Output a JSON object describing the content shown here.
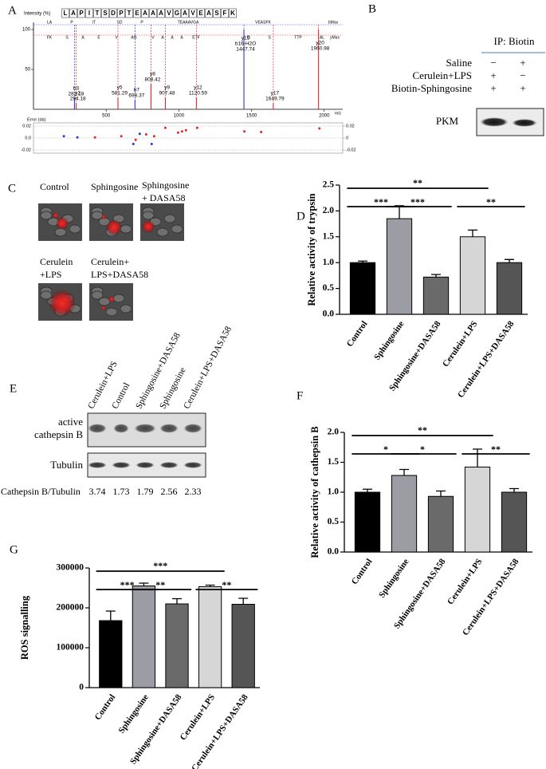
{
  "panel_labels": [
    "A",
    "B",
    "C",
    "D",
    "E",
    "F",
    "G"
  ],
  "chart_data": [
    {
      "type": "spectrum",
      "y_label": "Intensity (%)",
      "x_label": "m/z",
      "sequence": [
        "L",
        "A",
        "P",
        "I",
        "T",
        "S",
        "D",
        "P",
        "T",
        "E",
        "A",
        "A",
        "A",
        "V",
        "G",
        "A",
        "V",
        "E",
        "A",
        "S",
        "F",
        "K"
      ],
      "b_ions": [
        "LA",
        "P",
        "IT",
        "SD",
        "P",
        "TEAAAVGA",
        "VEASFK",
        "bMax"
      ],
      "y_ions": [
        "FK",
        "S",
        "A",
        "E",
        "V",
        "AG",
        "V",
        "A",
        "A",
        "A",
        "ETF",
        "D",
        "S",
        "TTP",
        "AL",
        "yMax"
      ],
      "xlim": [
        0,
        2100
      ],
      "xticks": [
        500,
        1000,
        1500,
        2000
      ],
      "ylim": [
        0,
        100
      ],
      "yticks": [
        50,
        100
      ],
      "peaks": {
        "names": [
          [
            "b3"
          ],
          [
            "y2"
          ],
          [
            "y5"
          ],
          [
            "b7"
          ],
          [
            "y8"
          ],
          [
            "y9"
          ],
          [
            "y12"
          ],
          [
            "y15",
            "b16-H2O"
          ],
          [
            "y17"
          ],
          [
            "y20"
          ]
        ],
        "x": [
          282.18,
          294.18,
          581.29,
          698.37,
          808.42,
          907.48,
          1120.59,
          1447.74,
          1649.79,
          1960.98
        ],
        "values": [
          14,
          8,
          15,
          12,
          32,
          15,
          15,
          100,
          8,
          100
        ],
        "colors": [
          "#2a35d4",
          "#e02828",
          "#e02828",
          "#2a35d4",
          "#e02828",
          "#e02828",
          "#e02828",
          "#2a35d4",
          "#e02828",
          "#e02828"
        ]
      },
      "error_label": "Error (da)",
      "error_ylim": [
        -0.02,
        0.02
      ],
      "error_yticks": [
        0.02,
        {
          "value": 0,
          "label": "0.0"
        },
        -0.02
      ],
      "error_y2ticks": [
        0.02,
        0,
        -0.02
      ],
      "errors": {
        "x": [
          209,
          302,
          423,
          604,
          687,
          703,
          731,
          775,
          813,
          830,
          907,
          995,
          1022,
          1049,
          1126,
          1451,
          1566,
          1967
        ],
        "values": [
          0.003,
          0.001,
          0.001,
          0.003,
          -0.01,
          -0.003,
          0.007,
          0.006,
          -0.01,
          0.003,
          0.017,
          0.009,
          0.011,
          0.013,
          0.017,
          0.011,
          0.01,
          0.016
        ],
        "colors": [
          "#2a35d4",
          "#2a35d4",
          "#e02828",
          "#e02828",
          "#2a35d4",
          "#e02828",
          "#2a35d4",
          "#e02828",
          "#2a35d4",
          "#e02828",
          "#e02828",
          "#e02828",
          "#e02828",
          "#e02828",
          "#e02828",
          "#e02828",
          "#e02828",
          "#e02828"
        ]
      }
    },
    {
      "type": "bar",
      "y_label": "Relative activity of trypsin",
      "categories": [
        "Control",
        "Sphingosine",
        "Sphingosine+DASA58",
        "Cerulein+LPS",
        "Cerulein+LPS+DASA58"
      ],
      "values": [
        1.0,
        1.85,
        0.72,
        1.5,
        1.0
      ],
      "errors": [
        0.03,
        0.25,
        0.05,
        0.13,
        0.06
      ],
      "colors": [
        "#000000",
        "#9c9ca4",
        "#6a6a6a",
        "#d6d6d6",
        "#555555"
      ],
      "ylim": [
        0,
        2.5
      ],
      "yticks": [
        {
          "value": 0,
          "label": "0.0"
        },
        0.5,
        {
          "value": 1,
          "label": "1.0"
        },
        1.5,
        {
          "value": 2,
          "label": "2.0"
        },
        2.5
      ],
      "comparisons": [
        {
          "between": [
            "Control",
            "Cerulein+LPS"
          ],
          "label": "**"
        },
        {
          "between": [
            "Control",
            "Sphingosine"
          ],
          "label": "***"
        },
        {
          "between": [
            "Sphingosine",
            "Sphingosine+DASA58"
          ],
          "label": "***"
        },
        {
          "between": [
            "Cerulein+LPS",
            "Cerulein+LPS+DASA58"
          ],
          "label": "**"
        }
      ]
    },
    {
      "type": "bar",
      "y_label": "Relative activity of cathepsin B",
      "categories": [
        "Control",
        "Sphingosine",
        "Sphingosine+DASA58",
        "Cerulein+LPS",
        "Cerulein+LPS+DASA58"
      ],
      "values": [
        1.0,
        1.28,
        0.93,
        1.42,
        1.0
      ],
      "errors": [
        0.05,
        0.1,
        0.09,
        0.3,
        0.06
      ],
      "colors": [
        "#000000",
        "#9c9ca4",
        "#6a6a6a",
        "#d6d6d6",
        "#555555"
      ],
      "ylim": [
        0,
        2
      ],
      "yticks": [
        {
          "value": 0,
          "label": "0.0"
        },
        0.5,
        {
          "value": 1,
          "label": "1.0"
        },
        1.5,
        {
          "value": 2,
          "label": "2.0"
        }
      ],
      "comparisons": [
        {
          "between": [
            "Control",
            "Cerulein+LPS"
          ],
          "label": "**"
        },
        {
          "between": [
            "Control",
            "Sphingosine"
          ],
          "label": "*"
        },
        {
          "between": [
            "Sphingosine",
            "Sphingosine+DASA58"
          ],
          "label": "*"
        },
        {
          "between": [
            "Cerulein+LPS",
            "Cerulein+LPS+DASA58"
          ],
          "label": "**"
        }
      ]
    },
    {
      "type": "bar",
      "y_label": "ROS signalling",
      "categories": [
        "Control",
        "Sphingosine",
        "Sphingosine+DASA58",
        "Cerulein+LPS",
        "Cerulein+LPS+DASA58"
      ],
      "values": [
        168000,
        255000,
        210000,
        253000,
        209000
      ],
      "errors": [
        24000,
        7000,
        13000,
        4000,
        15000
      ],
      "colors": [
        "#000000",
        "#9c9ca4",
        "#6a6a6a",
        "#d6d6d6",
        "#555555"
      ],
      "ylim": [
        0,
        300000
      ],
      "yticks": [
        0,
        100000,
        200000,
        300000
      ],
      "comparisons": [
        {
          "between": [
            "Control",
            "Cerulein+LPS"
          ],
          "label": "***"
        },
        {
          "between": [
            "Control",
            "Sphingosine"
          ],
          "label": "***"
        },
        {
          "between": [
            "Sphingosine",
            "Sphingosine+DASA58"
          ],
          "label": "**"
        },
        {
          "between": [
            "Cerulein+LPS",
            "Cerulein+LPS+DASA58"
          ],
          "label": "**"
        }
      ]
    }
  ],
  "panel_b": {
    "ip": "IP:  Biotin",
    "rows": [
      {
        "label": "Saline",
        "marks": [
          "−",
          "+"
        ]
      },
      {
        "label": "Cerulein+LPS",
        "marks": [
          "+",
          "−"
        ]
      },
      {
        "label": "Biotin-Sphingosine",
        "marks": [
          "+",
          "+"
        ]
      }
    ],
    "blot": "PKM"
  },
  "panel_c": {
    "images": [
      [
        "Control"
      ],
      [
        "Sphingosine"
      ],
      [
        "Sphingosine",
        "+ DASA58"
      ],
      [
        "Cerulein",
        "+LPS"
      ],
      [
        "Cerulein+",
        "LPS+DASA58"
      ]
    ]
  },
  "panel_e": {
    "columns": [
      "Cerulein+LPS",
      "Control",
      "Sphingosine+DASA58",
      "Sphingosine",
      "Cerulein+LPS+DASA58"
    ],
    "rows": [
      [
        "active",
        "cathepsin  B"
      ],
      [
        "Tubulin"
      ]
    ],
    "ratio_label": "Cathepsin B/Tubulin",
    "ratios": [
      3.74,
      1.73,
      1.79,
      2.56,
      2.33
    ]
  }
}
